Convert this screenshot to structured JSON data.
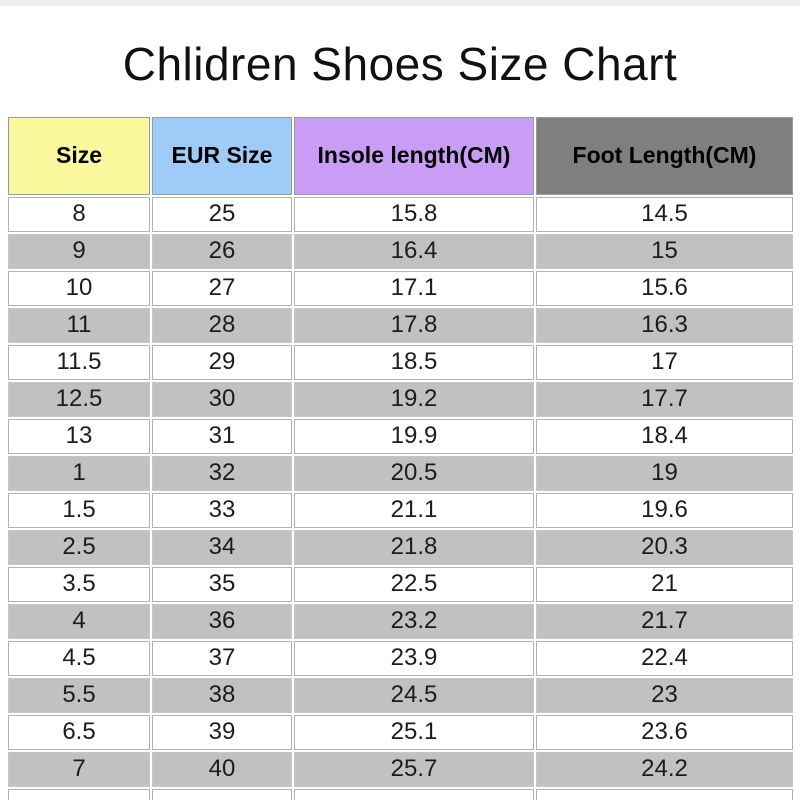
{
  "chart_data": {
    "type": "table",
    "title": "Chlidren Shoes Size Chart",
    "columns": [
      {
        "label": "Size",
        "bg": "#fbf99e"
      },
      {
        "label": "EUR Size",
        "bg": "#9fccf6"
      },
      {
        "label": "Insole length(CM)",
        "bg": "#c99df5"
      },
      {
        "label": "Foot Length(CM)",
        "bg": "#7f7f7f"
      }
    ],
    "rows": [
      [
        "8",
        "25",
        "15.8",
        "14.5"
      ],
      [
        "9",
        "26",
        "16.4",
        "15"
      ],
      [
        "10",
        "27",
        "17.1",
        "15.6"
      ],
      [
        "11",
        "28",
        "17.8",
        "16.3"
      ],
      [
        "11.5",
        "29",
        "18.5",
        "17"
      ],
      [
        "12.5",
        "30",
        "19.2",
        "17.7"
      ],
      [
        "13",
        "31",
        "19.9",
        "18.4"
      ],
      [
        "1",
        "32",
        "20.5",
        "19"
      ],
      [
        "1.5",
        "33",
        "21.1",
        "19.6"
      ],
      [
        "2.5",
        "34",
        "21.8",
        "20.3"
      ],
      [
        "3.5",
        "35",
        "22.5",
        "21"
      ],
      [
        "4",
        "36",
        "23.2",
        "21.7"
      ],
      [
        "4.5",
        "37",
        "23.9",
        "22.4"
      ],
      [
        "5.5",
        "38",
        "24.5",
        "23"
      ],
      [
        "6.5",
        "39",
        "25.1",
        "23.6"
      ],
      [
        "7",
        "40",
        "25.7",
        "24.2"
      ],
      [
        "",
        "",
        "",
        ""
      ]
    ],
    "layout_hints": {
      "zebra_striping": true,
      "first_data_row_background": "white",
      "alternate_row_background": "#c1c1c1",
      "trailing_empty_row": true
    }
  },
  "colors": {
    "header_size_bg": "#fbf99e",
    "header_eur_bg": "#9fccf6",
    "header_insole_bg": "#c99df5",
    "header_foot_bg": "#7f7f7f",
    "zebra_row_bg": "#c1c1c1",
    "cell_border": "#b2b2b2",
    "header_border": "#9a9a9a",
    "top_strip_bg": "#f0f0f0",
    "title_color": "#111111",
    "body_text": "#1c1c1c"
  }
}
